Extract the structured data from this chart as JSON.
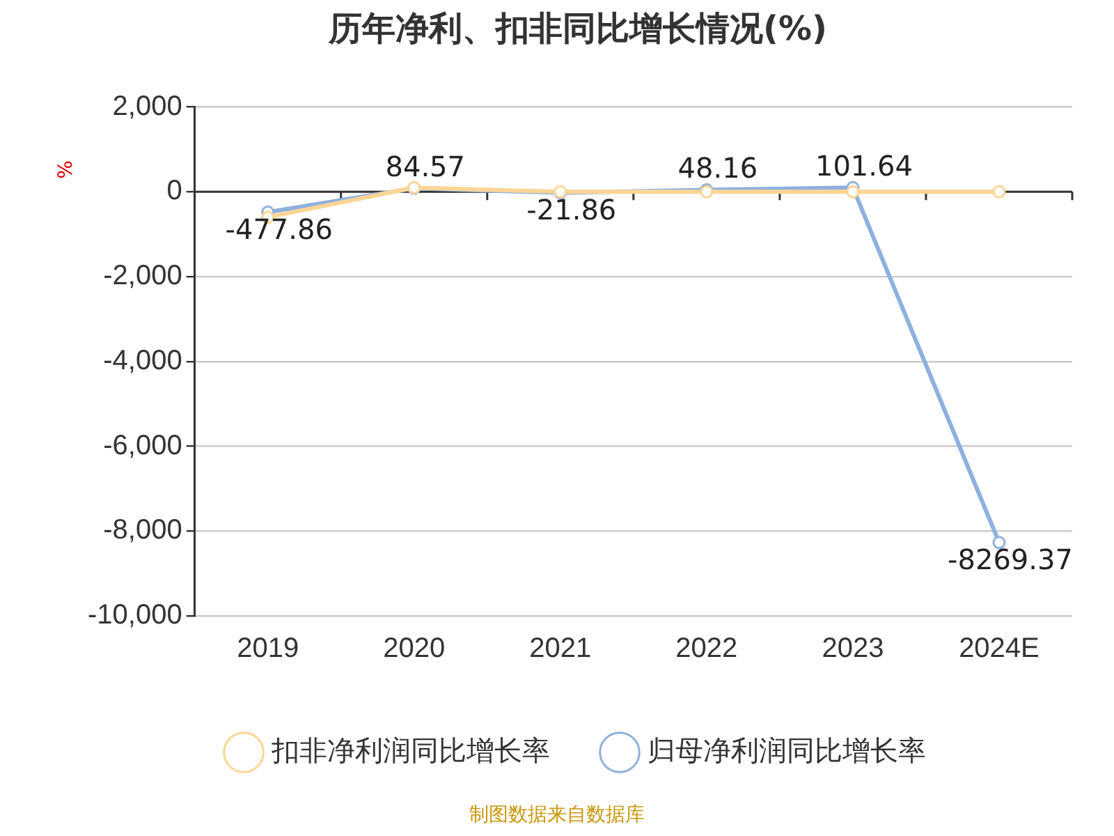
{
  "chart_data": {
    "type": "line",
    "title": "历年净利、扣非同比增长情况(%)",
    "ylabel": "%",
    "categories": [
      "2019",
      "2020",
      "2021",
      "2022",
      "2023",
      "2024E"
    ],
    "series": [
      {
        "name": "归母净利润同比增长率",
        "color": "#8eb0dd",
        "values": [
          -477.86,
          84.57,
          -21.86,
          48.16,
          101.64,
          -8269.37
        ],
        "value_labels": [
          "-477.86",
          "84.57",
          "-21.86",
          "48.16",
          "101.64",
          "-8269.37"
        ]
      },
      {
        "name": "扣非净利润同比增长率",
        "color": "#fcd595",
        "values": [
          -600,
          100,
          0,
          0,
          0,
          0
        ]
      }
    ],
    "ylim": [
      -10000,
      2000
    ],
    "yticks": [
      {
        "value": -10000,
        "label": "-10,000"
      },
      {
        "value": -8000,
        "label": "-8,000"
      },
      {
        "value": -6000,
        "label": "-6,000"
      },
      {
        "value": -4000,
        "label": "-4,000"
      },
      {
        "value": -2000,
        "label": "-2,000"
      },
      0,
      {
        "value": 2000,
        "label": "2,000"
      }
    ],
    "grid": "y",
    "legend": "bottom",
    "marker": "circle",
    "line_style": "solid",
    "annotations": [
      "制图数据来自数据库"
    ]
  }
}
